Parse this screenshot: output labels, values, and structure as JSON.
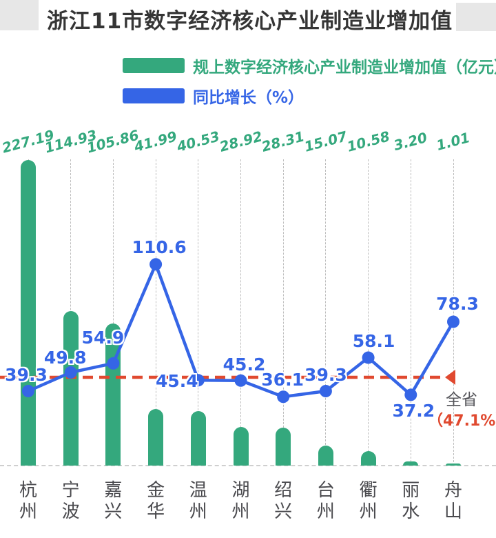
{
  "title": "浙江11市数字经济核心产业制造业增加值",
  "legend": [
    {
      "label": "规上数字经济核心产业制造业增加值（亿元）",
      "color": "#34a87d"
    },
    {
      "label": "同比增长（%）",
      "color": "#3565e6"
    }
  ],
  "colors": {
    "bar_green": "#34a87d",
    "line_blue": "#3565e6",
    "reference_red": "#e0492f",
    "title_text": "#353535",
    "axis_label_text": "#4a4a4e",
    "gridline": "#bdbdbd"
  },
  "chart_data": {
    "type": "bar",
    "subtype": "bar-line-combo",
    "categories": [
      "杭州",
      "宁波",
      "嘉兴",
      "金华",
      "温州",
      "湖州",
      "绍兴",
      "台州",
      "衢州",
      "丽水",
      "舟山"
    ],
    "series": [
      {
        "name": "规上数字经济核心产业制造业增加值（亿元）",
        "type": "bar",
        "color": "#34a87d",
        "values": [
          227.19,
          114.93,
          105.86,
          41.99,
          40.53,
          28.92,
          28.31,
          15.07,
          10.58,
          3.2,
          1.01
        ]
      },
      {
        "name": "同比增长（%）",
        "type": "line",
        "color": "#3565e6",
        "values": [
          39.3,
          49.8,
          54.9,
          110.6,
          45.4,
          45.2,
          36.1,
          39.3,
          58.1,
          37.2,
          78.3
        ]
      }
    ],
    "reference_line": {
      "label": "全省",
      "value": 47.1,
      "value_label": "（47.1%）",
      "color": "#e0492f"
    },
    "grid": "dashed-vertical-per-category",
    "legend_position": "top-left",
    "value_labels_visible": true
  }
}
